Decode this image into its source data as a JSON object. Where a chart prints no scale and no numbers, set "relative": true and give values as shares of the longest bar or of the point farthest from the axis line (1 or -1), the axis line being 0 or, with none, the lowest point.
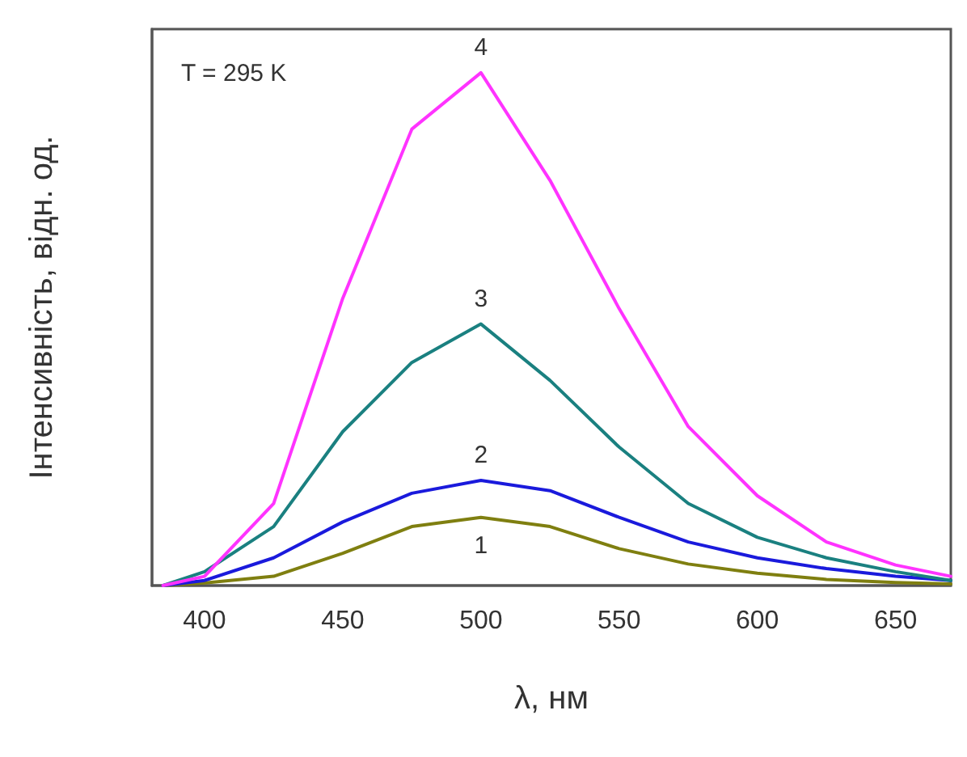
{
  "chart_data": {
    "type": "line",
    "relative": true,
    "xlabel": "λ, нм",
    "ylabel": "Інтенсивність, відн. од.",
    "annotations": [
      "T = 295 K"
    ],
    "xlim": [
      381,
      670
    ],
    "xticks": [
      400,
      450,
      500,
      550,
      600,
      650
    ],
    "tick_labels": "x",
    "grid": false,
    "legend": false,
    "marker": "none",
    "line_style": "solid",
    "x": [
      385,
      400,
      425,
      450,
      475,
      500,
      525,
      550,
      575,
      600,
      625,
      650,
      670
    ],
    "series": [
      {
        "name": "1",
        "color": "#7f7f10",
        "values": [
          0,
          0.005,
          0.018,
          0.063,
          0.115,
          0.133,
          0.115,
          0.072,
          0.042,
          0.024,
          0.012,
          0.006,
          0.003
        ]
      },
      {
        "name": "2",
        "color": "#1a1adc",
        "values": [
          0,
          0.01,
          0.054,
          0.124,
          0.18,
          0.205,
          0.185,
          0.133,
          0.085,
          0.054,
          0.033,
          0.018,
          0.01
        ]
      },
      {
        "name": "3",
        "color": "#1a8080",
        "values": [
          0,
          0.027,
          0.115,
          0.3,
          0.435,
          0.51,
          0.4,
          0.27,
          0.16,
          0.094,
          0.054,
          0.027,
          0.01
        ]
      },
      {
        "name": "4",
        "color": "#ff33ff",
        "values": [
          0,
          0.018,
          0.16,
          0.56,
          0.89,
          1,
          0.79,
          0.54,
          0.31,
          0.175,
          0.085,
          0.04,
          0.018
        ]
      }
    ]
  }
}
